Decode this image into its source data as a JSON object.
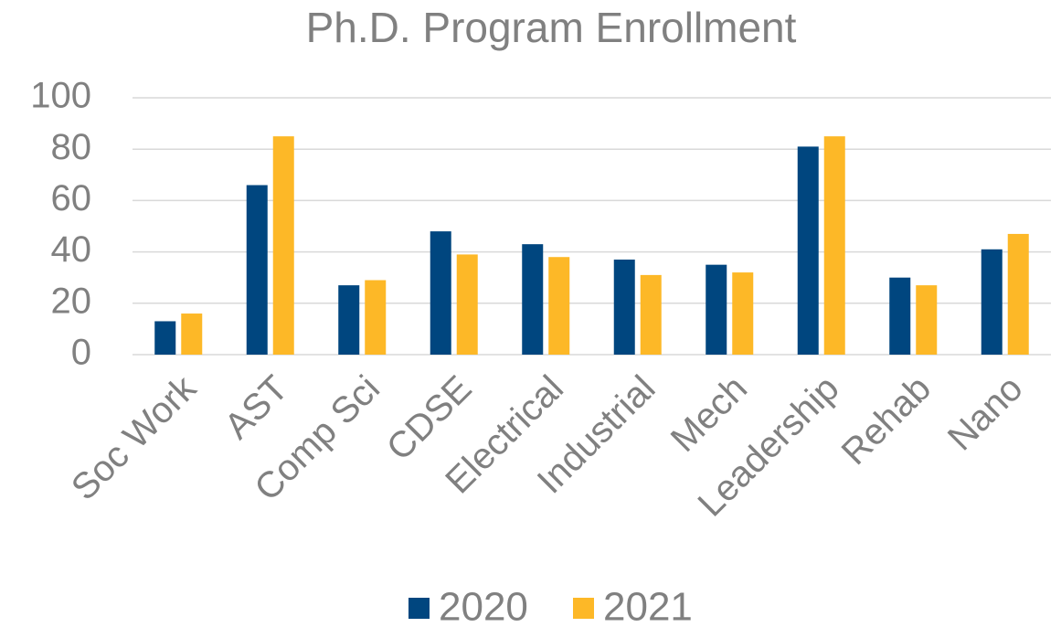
{
  "chart_data": {
    "type": "bar",
    "title": "Ph.D. Program Enrollment",
    "categories": [
      "Soc Work",
      "AST",
      "Comp Sci",
      "CDSE",
      "Electrical",
      "Industrial",
      "Mech",
      "Leadership",
      "Rehab",
      "Nano"
    ],
    "series": [
      {
        "name": "2020",
        "color": "#00467f",
        "values": [
          13,
          66,
          27,
          48,
          43,
          37,
          35,
          81,
          30,
          41
        ]
      },
      {
        "name": "2021",
        "color": "#fdb827",
        "values": [
          16,
          85,
          29,
          39,
          38,
          31,
          32,
          85,
          27,
          47
        ]
      }
    ],
    "ylim": [
      0,
      100
    ],
    "yticks": [
      0,
      20,
      40,
      60,
      80,
      100
    ],
    "grid": true,
    "legend": "bottom"
  }
}
